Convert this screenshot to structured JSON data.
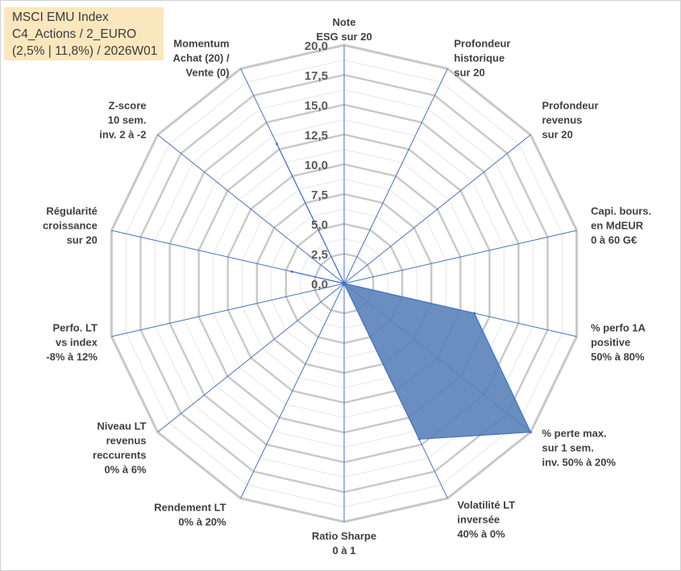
{
  "title_lines": [
    "MSCI EMU Index",
    "C4_Actions / 2_EURO",
    "(2,5% | 11,8%) / 2026W01"
  ],
  "chart_data": {
    "type": "radar",
    "title": "MSCI EMU Index C4_Actions / 2_EURO (2,5% | 11,8%) / 2026W01",
    "rmin": 0,
    "rmax": 20,
    "tick_step": 2.5,
    "ticks": [
      "0,0",
      "2,5",
      "5,0",
      "7,5",
      "10,0",
      "12,5",
      "15,0",
      "17,5",
      "20,0"
    ],
    "gridlines": true,
    "legend": "none",
    "fill_color": "#5a82b8",
    "line_color": "#4472c4",
    "grid_color": "#c8c8c8",
    "axes": [
      {
        "label": [
          "Note",
          "ESG sur 20"
        ],
        "value": 0
      },
      {
        "label": [
          "Profondeur",
          "historique",
          "sur 20"
        ],
        "value": 0
      },
      {
        "label": [
          "Profondeur",
          "revenus",
          "sur 20"
        ],
        "value": 0
      },
      {
        "label": [
          "Capi. bours.",
          "en MdEUR",
          "0 à 60 G€"
        ],
        "value": 0
      },
      {
        "label": [
          "% perfo 1A",
          "positive",
          "50% à 80%"
        ],
        "value": 11.2
      },
      {
        "label": [
          "% perte max.",
          "sur 1 sem.",
          "inv. 50% à 20%"
        ],
        "value": 20
      },
      {
        "label": [
          "Volatilité LT",
          "inversée",
          "40% à 0%"
        ],
        "value": 14.5
      },
      {
        "label": [
          "Ratio Sharpe",
          "0 à 1"
        ],
        "value": 0
      },
      {
        "label": [
          "Rendement LT",
          "0% à 20%"
        ],
        "value": 0
      },
      {
        "label": [
          "Niveau LT",
          "revenus",
          "reccurents",
          "0% à 6%"
        ],
        "value": 0
      },
      {
        "label": [
          "Perfo. LT",
          "vs index",
          "-8% à 12%"
        ],
        "value": 0
      },
      {
        "label": [
          "Régularité",
          "croissance",
          "sur 20"
        ],
        "value": 4.5
      },
      {
        "label": [
          "Z-score",
          "10 sem.",
          "inv. 2 à -2"
        ],
        "value": 0
      },
      {
        "label": [
          "Momentum",
          "Achat (20) /",
          "Vente (0)"
        ],
        "value": 13
      }
    ]
  }
}
